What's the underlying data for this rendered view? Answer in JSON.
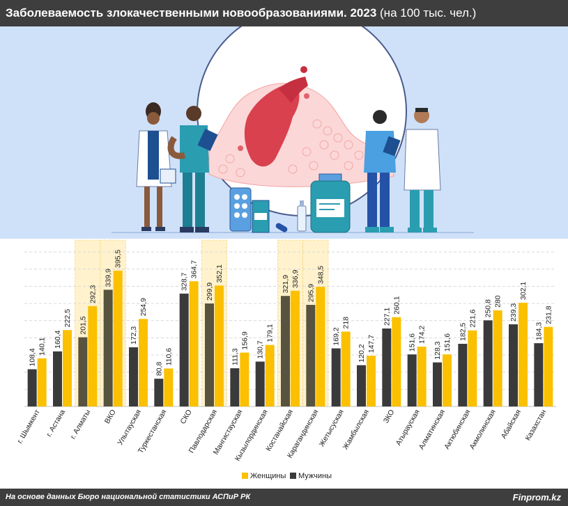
{
  "header": {
    "title": "Заболеваемость злокачественными новообразованиями. 2023",
    "subtitle": "(на 100 тыс. чел.)"
  },
  "footer": {
    "source": "На основе данных Бюро национальной статистики АСПиР РК",
    "brand": "Finprom.kz"
  },
  "colors": {
    "women": "#fbc000",
    "men": "#3a3a3a",
    "men_highlight": "#57533e",
    "highlight_band": "#fff2cc",
    "hero_bg": "#cfe1f9"
  },
  "illustration": {
    "description_icons": [
      "doctor-icon",
      "nurse-icon",
      "cancer-cell-icon",
      "pill-blister-icon",
      "medicine-bottle-icon"
    ]
  },
  "chart_data": {
    "type": "bar",
    "categories": [
      "г. Шымкент",
      "г. Астана",
      "г. Алматы",
      "ВКО",
      "Улытауская",
      "Туркестанская",
      "СКО",
      "Павлодарская",
      "Мангистауская",
      "Кызылординская",
      "Костанайская",
      "Карагандинская",
      "Жетысуская",
      "Жамбылская",
      "ЗКО",
      "Атырауская",
      "Алматинская",
      "Актюбинская",
      "Акмолинская",
      "Абайская",
      "Казахстан"
    ],
    "series": [
      {
        "name": "Мужчины",
        "values": [
          108.4,
          160.4,
          201.5,
          339.9,
          172.3,
          80.8,
          328.7,
          299.9,
          111.3,
          130.7,
          321.9,
          295.9,
          169.2,
          120.2,
          227.1,
          151.6,
          128.3,
          182.5,
          250.8,
          239.3,
          184.3
        ]
      },
      {
        "name": "Женщины",
        "values": [
          140.1,
          222.5,
          292.3,
          395.5,
          254.9,
          110.6,
          364.7,
          352.1,
          156.9,
          179.1,
          336.9,
          348.5,
          218,
          147.7,
          260.1,
          174.2,
          151.6,
          221.6,
          280,
          302.1,
          231.8
        ]
      }
    ],
    "value_labels": {
      "men": [
        "108,4",
        "160,4",
        "201,5",
        "339,9",
        "172,3",
        "80,8",
        "328,7",
        "299,9",
        "111,3",
        "130,7",
        "321,9",
        "295,9",
        "169,2",
        "120,2",
        "227,1",
        "151,6",
        "128,3",
        "182,5",
        "250,8",
        "239,3",
        "184,3"
      ],
      "women": [
        "140,1",
        "222,5",
        "292,3",
        "395,5",
        "254,9",
        "110,6",
        "364,7",
        "352,1",
        "156,9",
        "179,1",
        "336,9",
        "348,5",
        "218",
        "147,7",
        "260,1",
        "174,2",
        "151,6",
        "221,6",
        "280",
        "302,1",
        "231,8"
      ]
    },
    "highlighted_categories": [
      "г. Алматы",
      "ВКО",
      "Павлодарская",
      "Костанайская",
      "Карагандинская"
    ],
    "legend": [
      "Женщины",
      "Мужчины"
    ],
    "legend_position": "bottom-center",
    "ylim": [
      0,
      450
    ],
    "grid": true
  }
}
